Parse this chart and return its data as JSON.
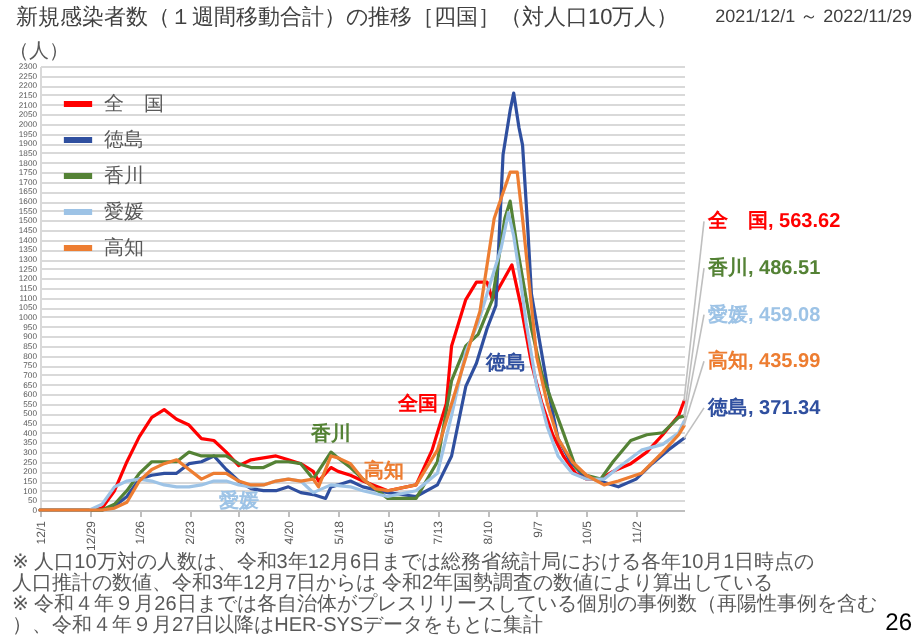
{
  "chart_data": {
    "type": "line",
    "title": "新規感染者数（１週間移動合計）の推移［四国］（対人口10万人）",
    "subtitle": "2021/12/1 ～ 2022/11/29",
    "ylabel": "（人）",
    "xlim": [
      "2021-12-01",
      "2022-11-29"
    ],
    "xticks": [
      {
        "value": "2021-12-01",
        "label": "12/1"
      },
      {
        "value": "2021-12-29",
        "label": "12/29"
      },
      {
        "value": "2022-01-26",
        "label": "1/26"
      },
      {
        "value": "2022-02-23",
        "label": "2/23"
      },
      {
        "value": "2022-03-23",
        "label": "3/23"
      },
      {
        "value": "2022-04-20",
        "label": "4/20"
      },
      {
        "value": "2022-05-18",
        "label": "5/18"
      },
      {
        "value": "2022-06-15",
        "label": "6/15"
      },
      {
        "value": "2022-07-13",
        "label": "7/13"
      },
      {
        "value": "2022-08-10",
        "label": "8/10"
      },
      {
        "value": "2022-09-07",
        "label": "9/7"
      },
      {
        "value": "2022-10-05",
        "label": "10/5"
      },
      {
        "value": "2022-11-02",
        "label": "11/2"
      }
    ],
    "ylim": [
      0,
      2300
    ],
    "yticks": [
      0,
      50,
      100,
      150,
      200,
      250,
      300,
      350,
      400,
      450,
      500,
      550,
      600,
      650,
      700,
      750,
      800,
      850,
      900,
      950,
      1000,
      1050,
      1100,
      1150,
      1200,
      1250,
      1300,
      1350,
      1400,
      1450,
      1500,
      1550,
      1600,
      1650,
      1700,
      1750,
      1800,
      1850,
      1900,
      1950,
      2000,
      2050,
      2100,
      2150,
      2200,
      2250,
      2300
    ],
    "grid": "y",
    "legend": "top left",
    "series": [
      {
        "name": "全　国",
        "color": "#ff0000",
        "x": [
          "2021-12-01",
          "2021-12-29",
          "2022-01-05",
          "2022-01-12",
          "2022-01-19",
          "2022-01-26",
          "2022-02-02",
          "2022-02-09",
          "2022-02-16",
          "2022-02-23",
          "2022-03-02",
          "2022-03-09",
          "2022-03-16",
          "2022-03-23",
          "2022-03-30",
          "2022-04-06",
          "2022-04-13",
          "2022-04-20",
          "2022-04-27",
          "2022-05-04",
          "2022-05-07",
          "2022-05-14",
          "2022-05-18",
          "2022-05-25",
          "2022-06-01",
          "2022-06-15",
          "2022-07-01",
          "2022-07-10",
          "2022-07-18",
          "2022-07-21",
          "2022-07-29",
          "2022-08-04",
          "2022-08-10",
          "2022-08-13",
          "2022-08-24",
          "2022-08-29",
          "2022-09-04",
          "2022-09-10",
          "2022-09-16",
          "2022-09-22",
          "2022-09-29",
          "2022-10-05",
          "2022-10-13",
          "2022-10-20",
          "2022-10-30",
          "2022-11-08",
          "2022-11-17",
          "2022-11-26",
          "2022-11-29"
        ],
        "values": [
          0,
          0,
          10,
          100,
          250,
          380,
          480,
          520,
          470,
          440,
          370,
          360,
          300,
          230,
          260,
          270,
          280,
          260,
          240,
          200,
          150,
          220,
          200,
          180,
          150,
          100,
          130,
          310,
          550,
          850,
          1090,
          1180,
          1180,
          1090,
          1270,
          1060,
          760,
          550,
          390,
          280,
          190,
          160,
          160,
          200,
          240,
          300,
          390,
          490,
          563.62
        ],
        "value_labels": [
          null,
          null,
          null,
          null,
          null,
          null,
          null,
          null,
          null,
          null,
          null,
          null,
          null,
          null,
          null,
          null,
          null,
          null,
          null,
          null,
          null,
          null,
          null,
          null,
          null,
          null,
          null,
          null,
          null,
          null,
          null,
          null,
          null,
          null,
          null,
          null,
          null,
          null,
          null,
          null,
          null,
          null,
          null,
          null,
          null,
          null,
          null,
          null,
          "全　国, 563.62"
        ]
      },
      {
        "name": "徳島",
        "color": "#2f4f9f",
        "x": [
          "2021-12-01",
          "2022-01-05",
          "2022-01-12",
          "2022-01-19",
          "2022-01-26",
          "2022-02-02",
          "2022-02-09",
          "2022-02-16",
          "2022-02-23",
          "2022-03-02",
          "2022-03-09",
          "2022-03-16",
          "2022-03-23",
          "2022-03-30",
          "2022-04-06",
          "2022-04-13",
          "2022-04-20",
          "2022-04-27",
          "2022-05-04",
          "2022-05-11",
          "2022-05-14",
          "2022-05-18",
          "2022-05-25",
          "2022-06-01",
          "2022-06-15",
          "2022-07-01",
          "2022-07-13",
          "2022-07-21",
          "2022-07-29",
          "2022-08-04",
          "2022-08-10",
          "2022-08-15",
          "2022-08-19",
          "2022-08-23",
          "2022-08-25",
          "2022-08-28",
          "2022-08-30",
          "2022-09-02",
          "2022-09-04",
          "2022-09-13",
          "2022-09-19",
          "2022-09-26",
          "2022-10-02",
          "2022-10-09",
          "2022-10-23",
          "2022-11-02",
          "2022-11-11",
          "2022-11-20",
          "2022-11-29"
        ],
        "values": [
          0,
          0,
          20,
          70,
          160,
          180,
          190,
          190,
          240,
          250,
          280,
          210,
          150,
          110,
          100,
          100,
          120,
          90,
          80,
          60,
          120,
          130,
          150,
          120,
          90,
          70,
          130,
          280,
          640,
          760,
          940,
          1060,
          1840,
          2070,
          2160,
          1980,
          1890,
          1450,
          1120,
          640,
          370,
          250,
          190,
          160,
          120,
          160,
          240,
          310,
          371.34
        ],
        "value_labels": [
          null,
          null,
          null,
          null,
          null,
          null,
          null,
          null,
          null,
          null,
          null,
          null,
          null,
          null,
          null,
          null,
          null,
          null,
          null,
          null,
          null,
          null,
          null,
          null,
          null,
          null,
          null,
          null,
          null,
          null,
          null,
          null,
          null,
          null,
          null,
          null,
          null,
          null,
          null,
          null,
          null,
          null,
          null,
          null,
          null,
          null,
          null,
          null,
          "徳島, 371.34"
        ]
      },
      {
        "name": "香川",
        "color": "#548235",
        "x": [
          "2021-12-01",
          "2022-01-05",
          "2022-01-12",
          "2022-01-19",
          "2022-01-26",
          "2022-02-02",
          "2022-02-09",
          "2022-02-16",
          "2022-02-23",
          "2022-03-02",
          "2022-03-09",
          "2022-03-16",
          "2022-03-23",
          "2022-03-30",
          "2022-04-06",
          "2022-04-13",
          "2022-04-20",
          "2022-04-27",
          "2022-05-04",
          "2022-05-14",
          "2022-05-18",
          "2022-05-25",
          "2022-06-01",
          "2022-06-15",
          "2022-07-01",
          "2022-07-13",
          "2022-07-21",
          "2022-07-29",
          "2022-08-05",
          "2022-08-13",
          "2022-08-20",
          "2022-08-23",
          "2022-08-27",
          "2022-08-31",
          "2022-09-04",
          "2022-09-10",
          "2022-09-16",
          "2022-09-22",
          "2022-09-29",
          "2022-10-05",
          "2022-10-13",
          "2022-10-20",
          "2022-10-30",
          "2022-11-08",
          "2022-11-17",
          "2022-11-26",
          "2022-11-29"
        ],
        "values": [
          0,
          0,
          30,
          100,
          190,
          250,
          250,
          250,
          300,
          280,
          280,
          280,
          240,
          220,
          220,
          250,
          250,
          240,
          160,
          300,
          270,
          220,
          160,
          60,
          60,
          250,
          670,
          850,
          910,
          1090,
          1510,
          1600,
          1360,
          1150,
          940,
          700,
          550,
          400,
          220,
          180,
          160,
          250,
          360,
          390,
          400,
          480,
          486.51
        ],
        "value_labels": [
          null,
          null,
          null,
          null,
          null,
          null,
          null,
          null,
          null,
          null,
          null,
          null,
          null,
          null,
          null,
          null,
          null,
          null,
          null,
          null,
          null,
          null,
          null,
          null,
          null,
          null,
          null,
          null,
          null,
          null,
          null,
          null,
          null,
          null,
          null,
          null,
          null,
          null,
          null,
          null,
          null,
          null,
          null,
          null,
          null,
          null,
          "香川, 486.51"
        ]
      },
      {
        "name": "愛媛",
        "color": "#9dc3e6",
        "x": [
          "2021-12-01",
          "2021-12-29",
          "2022-01-05",
          "2022-01-12",
          "2022-01-19",
          "2022-01-26",
          "2022-02-02",
          "2022-02-09",
          "2022-02-16",
          "2022-02-23",
          "2022-03-02",
          "2022-03-09",
          "2022-03-16",
          "2022-03-23",
          "2022-03-30",
          "2022-04-06",
          "2022-04-13",
          "2022-04-20",
          "2022-04-27",
          "2022-05-04",
          "2022-05-14",
          "2022-05-25",
          "2022-06-01",
          "2022-06-15",
          "2022-07-01",
          "2022-07-13",
          "2022-07-21",
          "2022-07-29",
          "2022-08-05",
          "2022-08-18",
          "2022-08-22",
          "2022-08-25",
          "2022-08-29",
          "2022-09-01",
          "2022-09-07",
          "2022-09-13",
          "2022-09-19",
          "2022-09-27",
          "2022-10-05",
          "2022-10-15",
          "2022-10-23",
          "2022-11-05",
          "2022-11-17",
          "2022-11-26",
          "2022-11-29"
        ],
        "values": [
          0,
          0,
          30,
          120,
          150,
          160,
          150,
          130,
          120,
          120,
          130,
          150,
          150,
          130,
          120,
          130,
          150,
          160,
          150,
          90,
          130,
          120,
          100,
          70,
          100,
          190,
          490,
          820,
          970,
          1360,
          1540,
          1420,
          1180,
          970,
          640,
          430,
          280,
          190,
          160,
          160,
          220,
          310,
          340,
          400,
          459.08
        ],
        "value_labels": [
          null,
          null,
          null,
          null,
          null,
          null,
          null,
          null,
          null,
          null,
          null,
          null,
          null,
          null,
          null,
          null,
          null,
          null,
          null,
          null,
          null,
          null,
          null,
          null,
          null,
          null,
          null,
          null,
          null,
          null,
          null,
          null,
          null,
          null,
          null,
          null,
          null,
          null,
          null,
          null,
          null,
          null,
          null,
          null,
          "愛媛, 459.08"
        ]
      },
      {
        "name": "高知",
        "color": "#ed7d31",
        "x": [
          "2021-12-01",
          "2022-01-05",
          "2022-01-12",
          "2022-01-19",
          "2022-01-26",
          "2022-02-02",
          "2022-02-09",
          "2022-02-16",
          "2022-02-23",
          "2022-03-02",
          "2022-03-09",
          "2022-03-16",
          "2022-03-23",
          "2022-03-30",
          "2022-04-06",
          "2022-04-13",
          "2022-04-20",
          "2022-04-27",
          "2022-05-04",
          "2022-05-07",
          "2022-05-14",
          "2022-05-18",
          "2022-05-25",
          "2022-06-01",
          "2022-06-08",
          "2022-06-15",
          "2022-07-01",
          "2022-07-13",
          "2022-07-21",
          "2022-07-29",
          "2022-08-06",
          "2022-08-14",
          "2022-08-23",
          "2022-08-27",
          "2022-08-30",
          "2022-09-03",
          "2022-09-07",
          "2022-09-13",
          "2022-09-19",
          "2022-09-27",
          "2022-10-05",
          "2022-10-15",
          "2022-10-23",
          "2022-11-05",
          "2022-11-17",
          "2022-11-26",
          "2022-11-29"
        ],
        "values": [
          0,
          0,
          10,
          40,
          150,
          210,
          240,
          260,
          210,
          160,
          190,
          190,
          150,
          130,
          130,
          150,
          160,
          150,
          160,
          120,
          280,
          270,
          240,
          160,
          110,
          100,
          130,
          310,
          550,
          790,
          1030,
          1510,
          1750,
          1750,
          1510,
          1150,
          790,
          550,
          370,
          250,
          180,
          130,
          150,
          190,
          300,
          390,
          435.99
        ],
        "value_labels": [
          null,
          null,
          null,
          null,
          null,
          null,
          null,
          null,
          null,
          null,
          null,
          null,
          null,
          null,
          null,
          null,
          null,
          null,
          null,
          null,
          null,
          null,
          null,
          null,
          null,
          null,
          null,
          null,
          null,
          null,
          null,
          null,
          null,
          null,
          null,
          null,
          null,
          null,
          null,
          null,
          null,
          null,
          null,
          null,
          null,
          null,
          "高知, 435.99"
        ]
      }
    ],
    "annotations": [
      {
        "text": "全国",
        "x": "2022-07-18",
        "y": 550
      },
      {
        "text": "徳島",
        "x": "2022-08-04",
        "y": 760
      },
      {
        "text": "香川",
        "x": "2022-05-14",
        "y": 300
      },
      {
        "text": "愛媛",
        "x": "2022-03-23",
        "y": 130
      },
      {
        "text": "高知",
        "x": "2022-07-01",
        "y": 130
      },
      "※ 人口10万対の人数は、令和3年12月6日までは総務省統計局における各年10月1日時点の人口推計の数値、令和3年12月7日からは 令和2年国勢調査の数値により算出している",
      "※ 令和４年９月26日までは各自治体がプレスリリースしている個別の事例数（再陽性事例を含む）、令和４年９月27日以降はHER-SYSデータをもとに集計",
      "26"
    ]
  }
}
